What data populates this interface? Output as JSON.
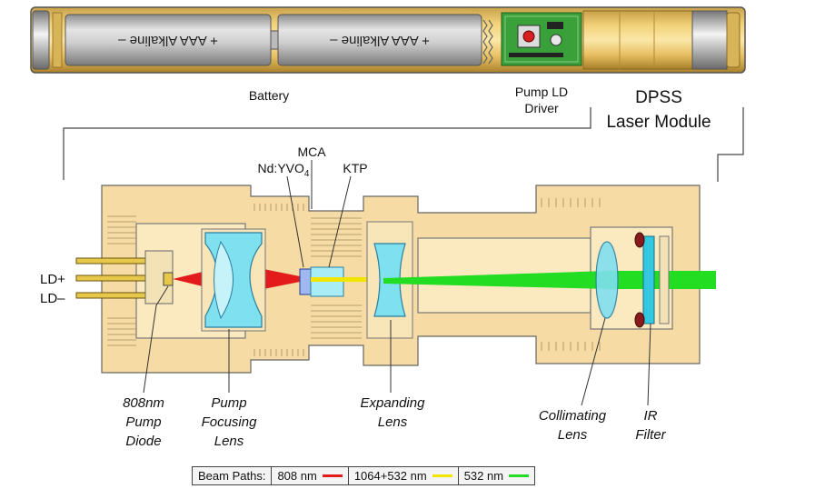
{
  "flashlight": {
    "battery1_text": "+ AAA Alkaline –",
    "battery2_text": "+ AAA Alkaline –"
  },
  "labels": {
    "battery": "Battery",
    "pump_ld_driver_1": "Pump LD",
    "pump_ld_driver_2": "Driver",
    "dpss_1": "DPSS",
    "dpss_2": "Laser Module",
    "mca": "MCA",
    "ndyvo_prefix": "Nd:YVO",
    "ndyvo_sub": "4",
    "ktp": "KTP",
    "ld_plus": "LD+",
    "ld_minus": "LD–",
    "pump_diode_1": "808nm",
    "pump_diode_2": "Pump",
    "pump_diode_3": "Diode",
    "focusing_1": "Pump",
    "focusing_2": "Focusing",
    "focusing_3": "Lens",
    "expanding_1": "Expanding",
    "expanding_2": "Lens",
    "collimating_1": "Collimating",
    "collimating_2": "Lens",
    "ir_1": "IR",
    "ir_2": "Filter"
  },
  "legend": {
    "title": "Beam Paths:",
    "items": [
      {
        "label": "808 nm",
        "color": "#e31b1b"
      },
      {
        "label": "1064+532 nm",
        "color": "#f2e600"
      },
      {
        "label": "532 nm",
        "color": "#22dd22"
      }
    ]
  },
  "colors": {
    "housing": "#f6dca4",
    "housing_stroke": "#666666",
    "lens": "#7fe0f0",
    "beam_808": "#e31b1b",
    "beam_1064": "#f2e600",
    "beam_532": "#22dd22"
  }
}
